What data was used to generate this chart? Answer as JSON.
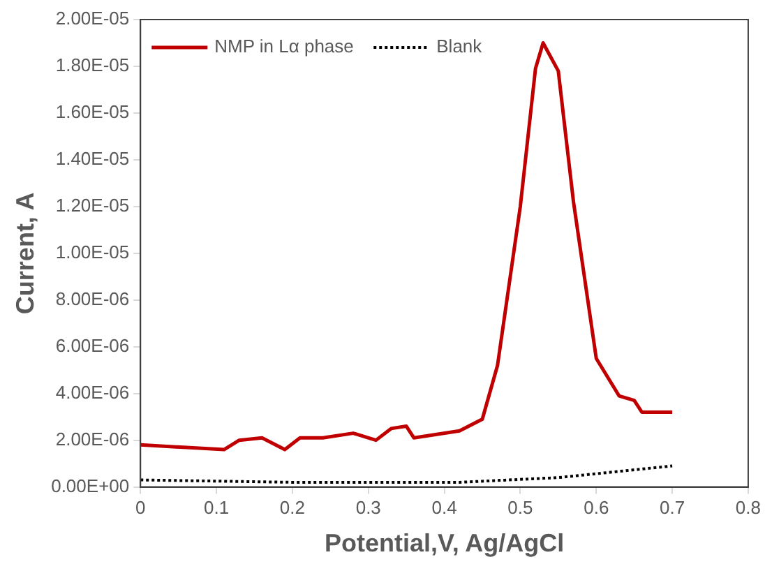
{
  "chart_data": {
    "type": "line",
    "xlabel": "Potential,V, Ag/AgCl",
    "ylabel": "Current, A",
    "xlim": [
      0,
      0.8
    ],
    "xticks": [
      0,
      0.1,
      0.2,
      0.3,
      0.4,
      0.5,
      0.6,
      0.7,
      0.8
    ],
    "ylim": [
      0,
      2e-05
    ],
    "yticks": [
      {
        "value": 0,
        "label": "0.00E+00"
      },
      {
        "value": 2e-06,
        "label": "2.00E-06"
      },
      {
        "value": 4e-06,
        "label": "4.00E-06"
      },
      {
        "value": 6e-06,
        "label": "6.00E-06"
      },
      {
        "value": 8e-06,
        "label": "8.00E-06"
      },
      {
        "value": 1e-05,
        "label": "1.00E-05"
      },
      {
        "value": 1.2e-05,
        "label": "1.20E-05"
      },
      {
        "value": 1.4e-05,
        "label": "1.40E-05"
      },
      {
        "value": 1.6e-05,
        "label": "1.60E-05"
      },
      {
        "value": 1.8e-05,
        "label": "1.80E-05"
      },
      {
        "value": 2e-05,
        "label": "2.00E-05"
      }
    ],
    "legend": "top left",
    "grid": false,
    "marker": "none",
    "series": [
      {
        "name": "NMP in Lα phase",
        "color": "#c00000",
        "line_style": "solid",
        "x": [
          0,
          0.11,
          0.13,
          0.16,
          0.19,
          0.21,
          0.24,
          0.28,
          0.31,
          0.33,
          0.35,
          0.36,
          0.42,
          0.45,
          0.47,
          0.5,
          0.52,
          0.53,
          0.55,
          0.57,
          0.6,
          0.63,
          0.65,
          0.66,
          0.7
        ],
        "values": [
          1.8e-06,
          1.6e-06,
          2e-06,
          2.1e-06,
          1.6e-06,
          2.1e-06,
          2.1e-06,
          2.3e-06,
          2e-06,
          2.5e-06,
          2.6e-06,
          2.1e-06,
          2.4e-06,
          2.9e-06,
          5.2e-06,
          1.2e-05,
          1.79e-05,
          1.9e-05,
          1.78e-05,
          1.22e-05,
          5.5e-06,
          3.9e-06,
          3.7e-06,
          3.2e-06,
          3.2e-06
        ]
      },
      {
        "name": "Blank",
        "color": "#000000",
        "line_style": "dotted",
        "x": [
          0,
          0.2,
          0.42,
          0.55,
          0.7
        ],
        "values": [
          3e-07,
          2e-07,
          2e-07,
          4e-07,
          9e-07
        ]
      }
    ]
  }
}
